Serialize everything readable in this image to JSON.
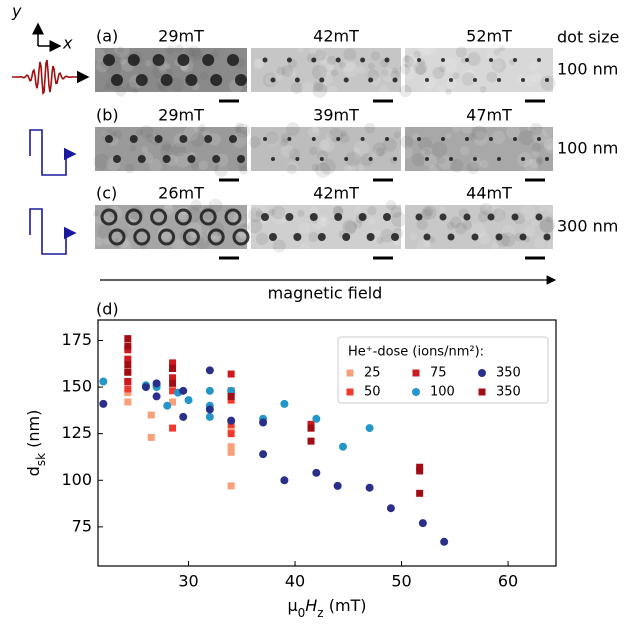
{
  "panels": {
    "axes_y": "y",
    "axes_x": "x",
    "dot_size": "dot size",
    "field_axis": "magnetic field",
    "rows": [
      {
        "label": "(a)",
        "fields": [
          "29mT",
          "42mT",
          "52mT"
        ],
        "size": "100 nm"
      },
      {
        "label": "(b)",
        "fields": [
          "29mT",
          "39mT",
          "47mT"
        ],
        "size": "100 nm"
      },
      {
        "label": "(c)",
        "fields": [
          "26mT",
          "42mT",
          "44mT"
        ],
        "size": "300 nm"
      }
    ]
  },
  "chart_data": {
    "type": "scatter",
    "panel_label": "(d)",
    "xlabel": [
      "μ",
      "0",
      "H",
      "z",
      " (mT)"
    ],
    "ylabel": [
      "d",
      "sk",
      " (nm)"
    ],
    "legend_title": "He⁺-dose (ions/nm²):",
    "xlim": [
      21.5,
      64.5
    ],
    "ylim": [
      54,
      186
    ],
    "xticks": [
      30,
      40,
      50,
      60
    ],
    "yticks": [
      75,
      100,
      125,
      150,
      175
    ],
    "series": [
      {
        "name": "25",
        "color": "#f7a07a",
        "marker": "square",
        "x": [
          24.3,
          24.3,
          26.5,
          26.5,
          28.5,
          34,
          34,
          34,
          34
        ],
        "values": [
          142,
          147,
          123,
          135,
          142,
          97,
          115,
          118,
          127
        ]
      },
      {
        "name": "50",
        "color": "#f03a2e",
        "marker": "square",
        "x": [
          24.3,
          24.3,
          24.3,
          28.5,
          28.5,
          28.5,
          34,
          34,
          34,
          34
        ],
        "values": [
          158,
          153,
          149,
          160,
          148,
          128,
          148,
          143,
          130,
          125
        ]
      },
      {
        "name": "75",
        "color": "#cc1a1e",
        "marker": "square",
        "x": [
          24.3,
          24.3,
          24.3,
          28.5,
          28.5,
          34,
          34,
          41.5,
          41.5
        ],
        "values": [
          165,
          170,
          153,
          163,
          155,
          157,
          147,
          130,
          128
        ]
      },
      {
        "name": "100",
        "color": "#2596c8",
        "marker": "circle",
        "x": [
          22,
          26,
          27,
          27,
          28,
          29,
          30,
          32,
          32,
          32,
          34,
          37,
          39,
          42,
          44.5,
          47
        ],
        "values": [
          153,
          151,
          151,
          150,
          140,
          147,
          143,
          148,
          140,
          134,
          148,
          133,
          141,
          133,
          118,
          128
        ]
      },
      {
        "name": "350",
        "color": "#2a2f8a",
        "marker": "circle",
        "x": [
          22,
          26,
          27,
          27,
          29.5,
          29.5,
          32,
          32,
          34,
          37,
          37,
          39,
          42,
          44,
          47,
          49,
          52,
          54
        ],
        "values": [
          141,
          150,
          152,
          145,
          148,
          134,
          159,
          138,
          132,
          131,
          114,
          100,
          104,
          97,
          96,
          85,
          77,
          67
        ]
      },
      {
        "name": "350",
        "color": "#a00d14",
        "marker": "square",
        "x": [
          24.3,
          24.3,
          24.3,
          24.3,
          28.5,
          28.5,
          34,
          41.5,
          41.5,
          51.7,
          51.7,
          51.7
        ],
        "values": [
          176,
          172,
          162,
          158,
          160,
          152,
          145,
          121,
          128,
          107,
          105,
          93
        ]
      }
    ]
  }
}
